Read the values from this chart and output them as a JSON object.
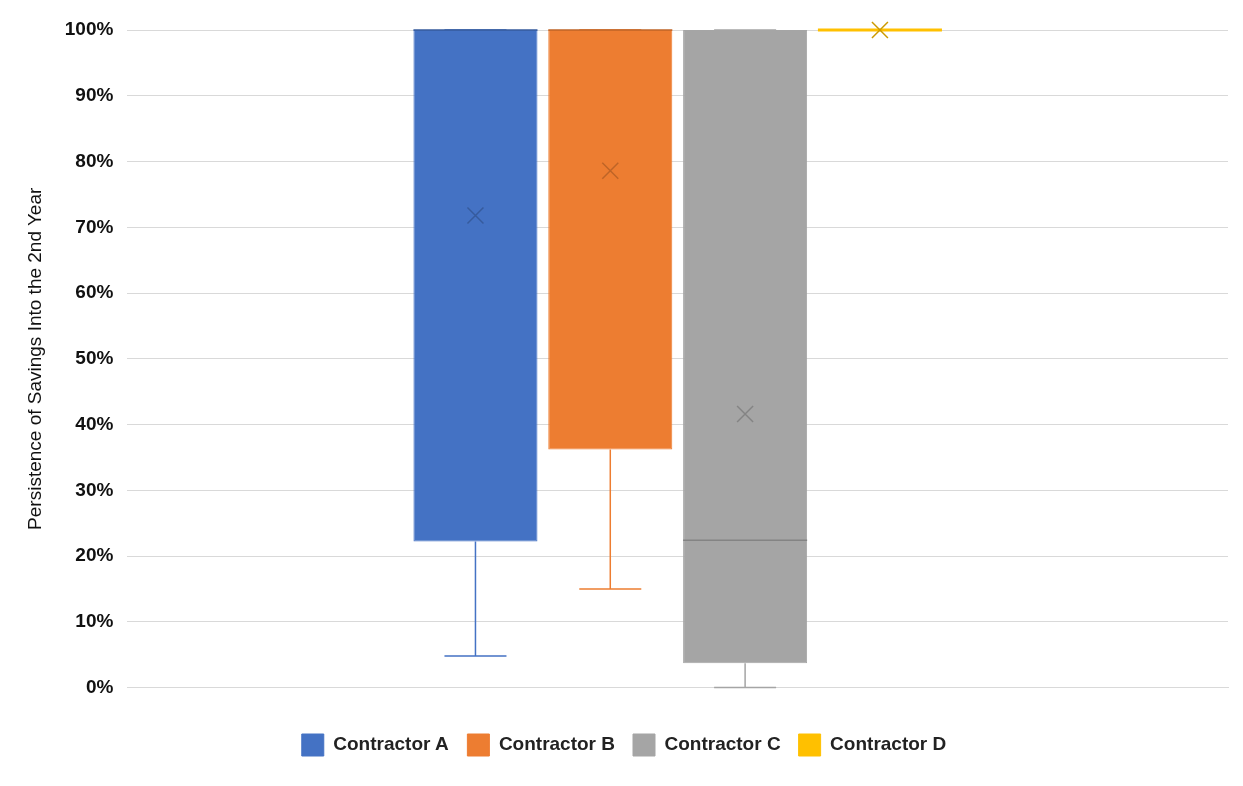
{
  "chart_data": {
    "type": "box",
    "ylabel": "Persistence of Savings Into the 2nd Year",
    "categories": [
      null
    ],
    "series": [
      {
        "name": "Contractor A",
        "color": "#4472c4",
        "boxes": [
          {
            "low": 4.8,
            "q1": 22.2,
            "median": 100,
            "q3": 100,
            "high": 100,
            "mean": 71.8
          }
        ]
      },
      {
        "name": "Contractor B",
        "color": "#ed7d31",
        "boxes": [
          {
            "low": 15,
            "q1": 36.2,
            "median": 100,
            "q3": 100,
            "high": 100,
            "mean": 78.6
          }
        ]
      },
      {
        "name": "Contractor C",
        "color": "#a5a5a5",
        "boxes": [
          {
            "low": 0,
            "q1": 3.7,
            "median": 22.4,
            "q3": 100,
            "high": 100,
            "mean": 41.6
          }
        ]
      },
      {
        "name": "Contractor D",
        "color": "#ffc000",
        "boxes": [
          {
            "low": 100,
            "q1": 100,
            "median": 100,
            "q3": 100,
            "high": 100,
            "mean": 100
          }
        ]
      }
    ],
    "ylim": [
      0,
      100
    ],
    "yticks": [
      {
        "value": 0,
        "label": "0%"
      },
      {
        "value": 10,
        "label": "10%"
      },
      {
        "value": 20,
        "label": "20%"
      },
      {
        "value": 30,
        "label": "30%"
      },
      {
        "value": 40,
        "label": "40%"
      },
      {
        "value": 50,
        "label": "50%"
      },
      {
        "value": 60,
        "label": "60%"
      },
      {
        "value": 70,
        "label": "70%"
      },
      {
        "value": 80,
        "label": "80%"
      },
      {
        "value": 90,
        "label": "90%"
      },
      {
        "value": 100,
        "label": "100%"
      }
    ],
    "grid": "y",
    "legend": "bottom",
    "marker": "cross"
  }
}
